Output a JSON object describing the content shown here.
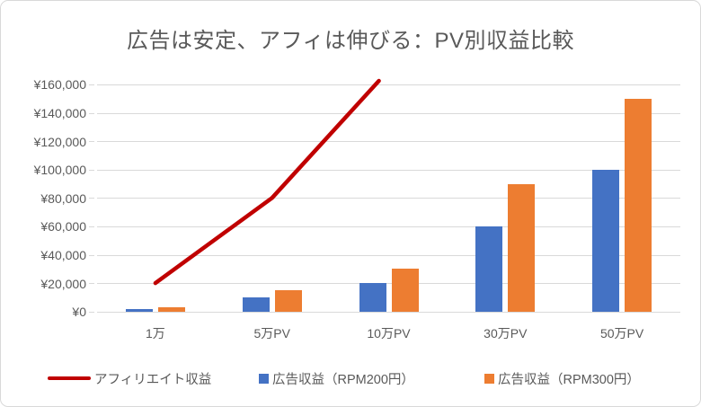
{
  "chart_data": {
    "type": "combo",
    "title": "広告は安定、アフィは伸びる：PV別収益比較",
    "categories": [
      "1万",
      "5万PV",
      "10万PV",
      "30万PV",
      "50万PV"
    ],
    "series": [
      {
        "name": "アフィリエイト収益",
        "type": "line",
        "color": "#C00000",
        "values": [
          20000,
          80000,
          170000,
          null,
          null
        ],
        "note": "line rises past the axis maximum and is clipped at the top of the plot between 5万PV and 10万PV; values beyond are not visible"
      },
      {
        "name": "広告収益（RPM200円）",
        "type": "bar",
        "color": "#4472C4",
        "values": [
          2000,
          10000,
          20000,
          60000,
          100000
        ]
      },
      {
        "name": "広告収益（RPM300円）",
        "type": "bar",
        "color": "#ED7D31",
        "values": [
          3000,
          15000,
          30000,
          90000,
          150000
        ]
      }
    ],
    "xlabel": "",
    "ylabel": "",
    "ylim": [
      0,
      160000
    ],
    "ytick_step": 20000,
    "ytick_labels": [
      "¥0",
      "¥20,000",
      "¥40,000",
      "¥60,000",
      "¥80,000",
      "¥100,000",
      "¥120,000",
      "¥140,000",
      "¥160,000"
    ],
    "grid": true,
    "legend_position": "bottom",
    "colors": {
      "grid": "#D9D9D9",
      "text": "#595959",
      "background": "#FFFFFF",
      "border": "#D9D9D9"
    }
  }
}
